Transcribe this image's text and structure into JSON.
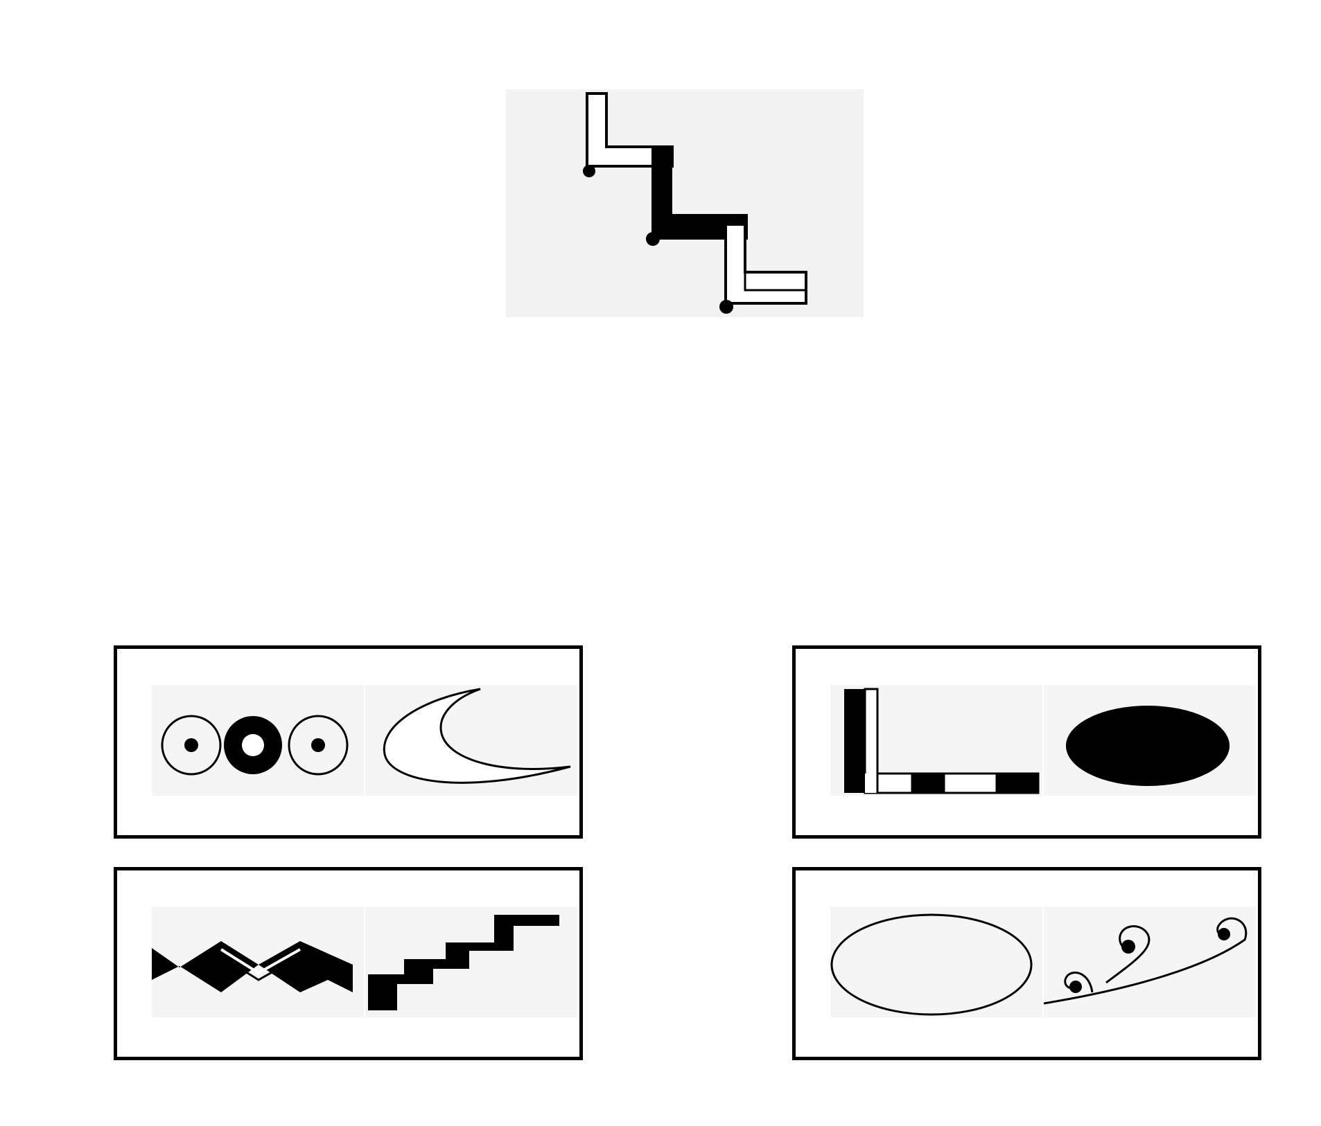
{
  "puzzle": {
    "question_icon": "zigzag-stair-outline-and-solid-icon",
    "options": [
      {
        "id": "opt-a",
        "icons": [
          "three-ring-circles-icon",
          "crescent-moon-icon"
        ]
      },
      {
        "id": "opt-b",
        "icons": [
          "l-shape-checkered-icon",
          "filled-ellipse-icon"
        ]
      },
      {
        "id": "opt-c",
        "icons": [
          "zigzag-band-icon",
          "staircase-icon"
        ]
      },
      {
        "id": "opt-d",
        "icons": [
          "outline-ellipse-icon",
          "spiral-waves-icon"
        ]
      }
    ],
    "colors": {
      "ink": "#000000",
      "panel": "#f2f2f2",
      "cell": "#f5f5f5"
    }
  }
}
